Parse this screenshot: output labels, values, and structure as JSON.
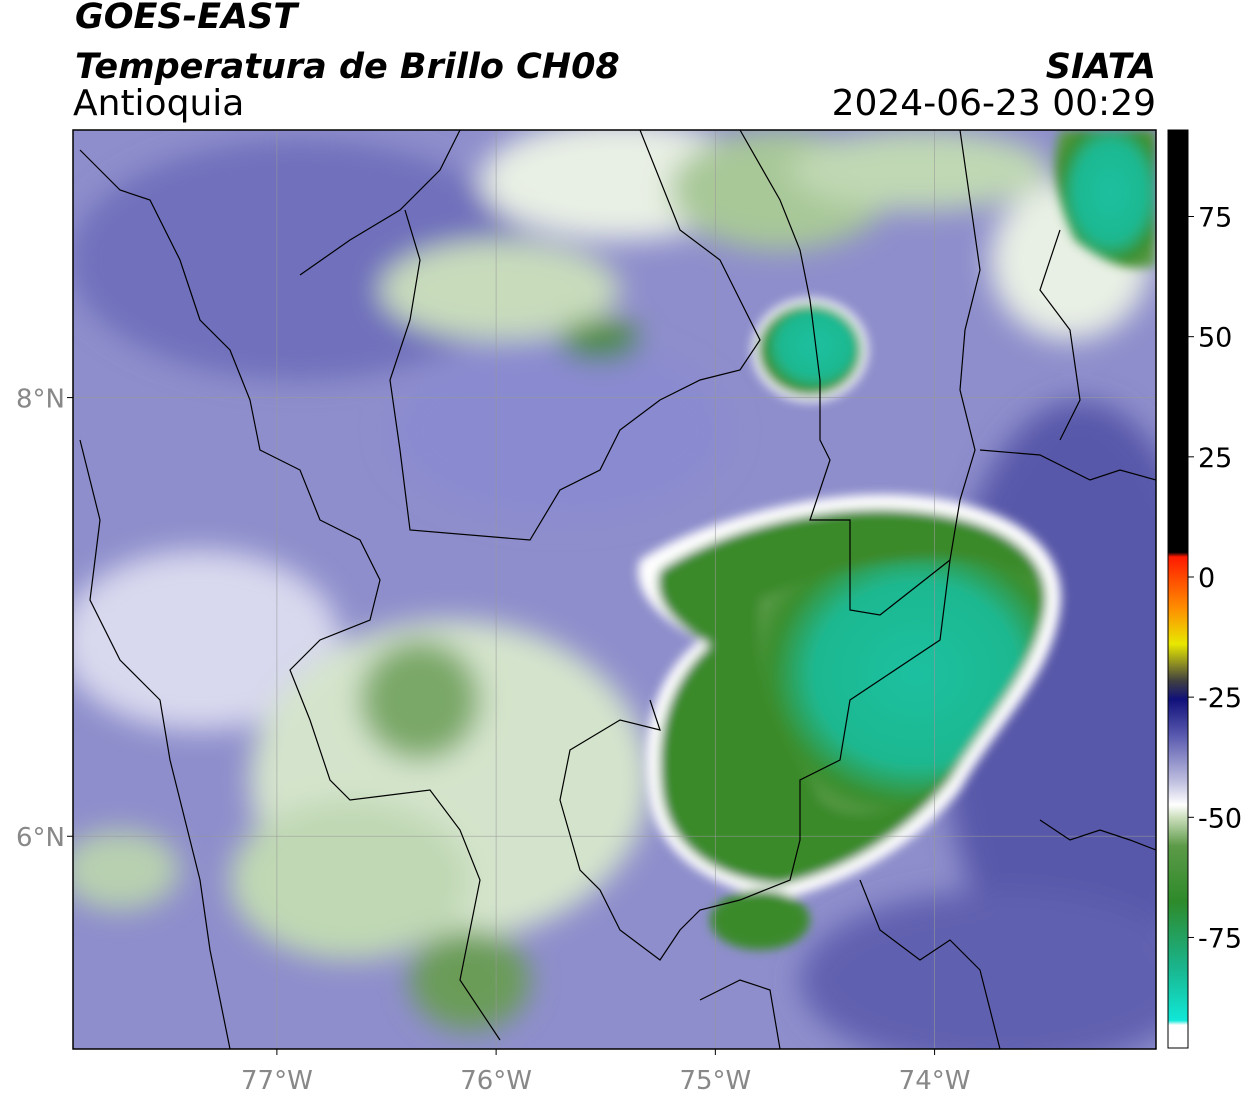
{
  "header": {
    "satellite": "GOES-EAST",
    "product": "Temperatura de Brillo CH08",
    "region": "Antioquia",
    "source": "SIATA",
    "datetime": "2024-06-23 00:29"
  },
  "map": {
    "xlim": [
      -77.93,
      -72.99
    ],
    "ylim": [
      5.03,
      9.22
    ],
    "xticks": [
      {
        "value": -77,
        "label": "77°W"
      },
      {
        "value": -76,
        "label": "76°W"
      },
      {
        "value": -75,
        "label": "75°W"
      },
      {
        "value": -74,
        "label": "74°W"
      }
    ],
    "yticks": [
      {
        "value": 8,
        "label": "8°N"
      },
      {
        "value": 6,
        "label": "6°N"
      }
    ]
  },
  "colorbar": {
    "lim": [
      -98,
      93
    ],
    "ticks": [
      75,
      50,
      25,
      0,
      -25,
      -50,
      -75
    ]
  }
}
